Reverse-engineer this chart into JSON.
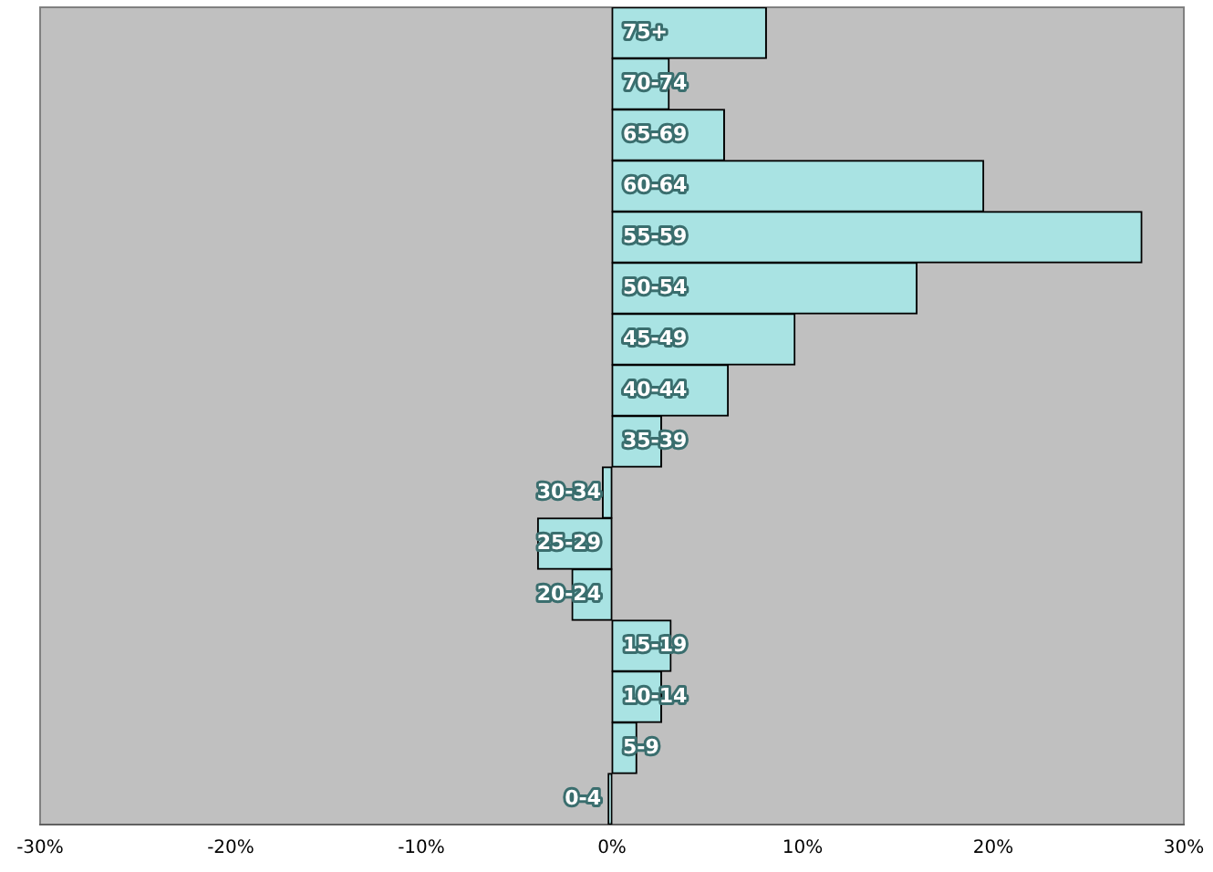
{
  "chart_data": {
    "type": "bar",
    "orientation": "horizontal",
    "categories": [
      "75+",
      "70-74",
      "65-69",
      "60-64",
      "55-59",
      "50-54",
      "45-49",
      "40-44",
      "35-39",
      "30-34",
      "25-29",
      "20-24",
      "15-19",
      "10-14",
      "5-9",
      "0-4"
    ],
    "values": [
      8.1,
      3.0,
      5.9,
      19.5,
      27.8,
      16.0,
      9.6,
      6.1,
      2.6,
      -0.5,
      -3.9,
      -2.1,
      3.1,
      2.6,
      1.3,
      -0.2
    ],
    "color": "#a9e3e3",
    "xlim": [
      -30,
      30
    ],
    "xticks": [
      {
        "value": -30,
        "label": "-30%"
      },
      {
        "value": -20,
        "label": "-20%"
      },
      {
        "value": -10,
        "label": "-10%"
      },
      {
        "value": 0,
        "label": "0%"
      },
      {
        "value": 10,
        "label": "10%"
      },
      {
        "value": 20,
        "label": "20%"
      },
      {
        "value": 30,
        "label": "30%"
      }
    ],
    "grid": false,
    "legend": false
  }
}
